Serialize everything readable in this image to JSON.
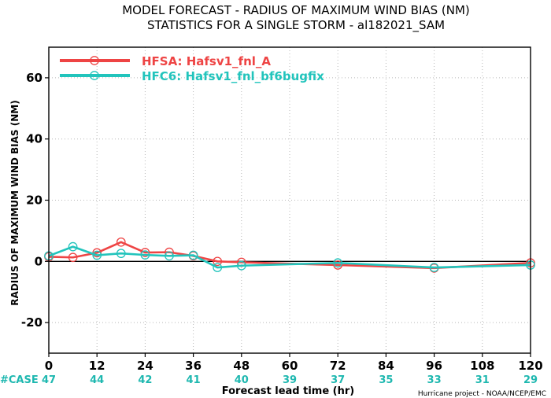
{
  "chart_data": {
    "type": "line",
    "title": "MODEL FORECAST - RADIUS OF MAXIMUM WIND BIAS (NM)",
    "subtitle": "STATISTICS FOR A SINGLE STORM - al182021_SAM",
    "xlabel": "Forecast lead time (hr)",
    "ylabel": "RADIUS OF MAXIMUM WIND BIAS (NM)",
    "xlim": [
      0,
      120
    ],
    "ylim": [
      -30,
      70
    ],
    "x_ticks": [
      0,
      12,
      24,
      36,
      48,
      60,
      72,
      84,
      96,
      108,
      120
    ],
    "y_ticks": [
      -20,
      0,
      20,
      40,
      60
    ],
    "grid": true,
    "legend_position": "top-left",
    "series": [
      {
        "name": "HFSA: Hafsv1_fnl_A",
        "color": "#ee4444",
        "x": [
          0,
          6,
          12,
          18,
          24,
          30,
          36,
          42,
          48,
          72,
          96,
          120
        ],
        "y": [
          1.5,
          1.3,
          2.8,
          6.3,
          2.9,
          3.0,
          1.8,
          0.0,
          -0.3,
          -1.2,
          -2.2,
          -0.5
        ]
      },
      {
        "name": "HFC6: Hafsv1_fnl_bf6bugfix",
        "color": "#22c4bc",
        "x": [
          0,
          6,
          12,
          18,
          24,
          30,
          36,
          42,
          48,
          72,
          96,
          120
        ],
        "y": [
          1.8,
          4.8,
          2.0,
          2.6,
          2.1,
          1.8,
          2.0,
          -2.0,
          -1.4,
          -0.5,
          -2.0,
          -1.2
        ]
      }
    ],
    "case_label": "#CASE",
    "case_hours": [
      0,
      12,
      24,
      36,
      48,
      60,
      72,
      84,
      96,
      108,
      120
    ],
    "case_counts": [
      47,
      44,
      42,
      41,
      40,
      39,
      37,
      35,
      33,
      31,
      29
    ],
    "credit": "Hurricane project - NOAA/NCEP/EMC"
  }
}
